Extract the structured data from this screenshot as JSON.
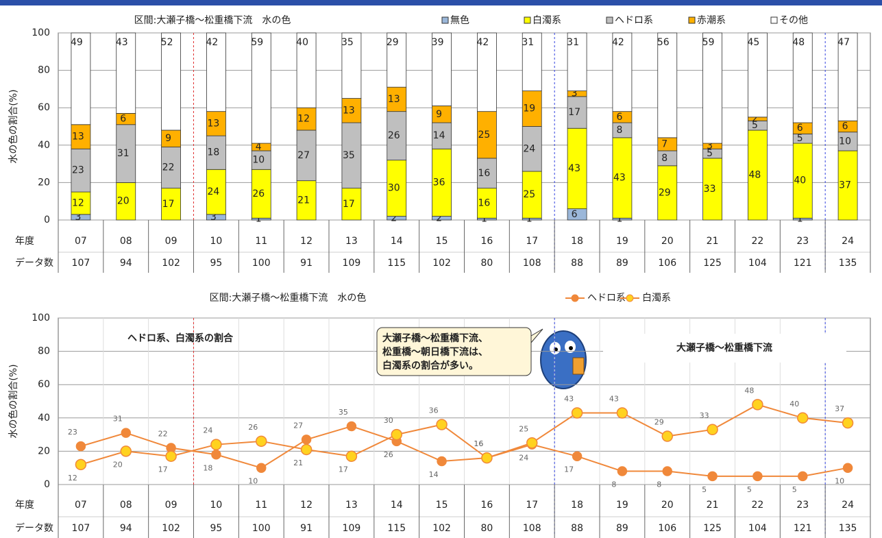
{
  "chart_data": [
    {
      "type": "bar",
      "stacked": true,
      "title": "区間:大瀬子橋～松重橋下流　水の色",
      "y_label": "水の色の割合(%)",
      "categories": [
        "07",
        "08",
        "09",
        "10",
        "11",
        "12",
        "13",
        "14",
        "15",
        "16",
        "17",
        "18",
        "19",
        "20",
        "21",
        "22",
        "23",
        "24"
      ],
      "series": [
        {
          "name": "無色",
          "color": "#9bb7d9",
          "values": [
            3,
            0,
            0,
            3,
            1,
            0,
            0,
            2,
            2,
            1,
            1,
            6,
            1,
            0,
            0,
            0,
            1,
            0
          ]
        },
        {
          "name": "白濁系",
          "color": "#ffff00",
          "values": [
            12,
            20,
            17,
            24,
            26,
            21,
            17,
            30,
            36,
            16,
            25,
            43,
            43,
            29,
            33,
            48,
            40,
            37
          ]
        },
        {
          "name": "ヘドロ系",
          "color": "#bfbfbf",
          "values": [
            23,
            31,
            22,
            18,
            10,
            27,
            35,
            26,
            14,
            16,
            24,
            17,
            8,
            8,
            5,
            5,
            5,
            10
          ]
        },
        {
          "name": "赤潮系",
          "color": "#ffb000",
          "values": [
            13,
            6,
            9,
            13,
            4,
            12,
            13,
            13,
            9,
            25,
            19,
            3,
            6,
            7,
            3,
            2,
            6,
            6
          ]
        },
        {
          "name": "その他",
          "color": "#ffffff",
          "values": [
            49,
            43,
            52,
            42,
            59,
            40,
            35,
            29,
            39,
            42,
            31,
            31,
            42,
            56,
            59,
            45,
            48,
            47
          ]
        }
      ],
      "ylim": [
        0,
        100
      ],
      "yticks": [
        0,
        20,
        40,
        60,
        80,
        100
      ],
      "grid": true,
      "row_labels": [
        "年度",
        "データ数"
      ],
      "data_counts": [
        107,
        94,
        102,
        95,
        100,
        91,
        109,
        115,
        102,
        80,
        108,
        88,
        89,
        106,
        125,
        104,
        121,
        135
      ]
    },
    {
      "type": "line",
      "title": "区間:大瀬子橋～松重橋下流　水の色",
      "y_label": "水の色の割合(%)",
      "categories": [
        "07",
        "08",
        "09",
        "10",
        "11",
        "12",
        "13",
        "14",
        "15",
        "16",
        "17",
        "18",
        "19",
        "20",
        "21",
        "22",
        "23",
        "24"
      ],
      "series": [
        {
          "name": "ヘドロ系",
          "color": "#f0883a",
          "values": [
            23,
            31,
            22,
            18,
            10,
            27,
            35,
            26,
            14,
            16,
            24,
            17,
            8,
            8,
            5,
            5,
            5,
            10
          ]
        },
        {
          "name": "白濁系",
          "color": "#ffd21f",
          "values": [
            12,
            20,
            17,
            24,
            26,
            21,
            17,
            30,
            36,
            16,
            25,
            43,
            43,
            29,
            33,
            48,
            40,
            37
          ]
        }
      ],
      "ylim": [
        0,
        100
      ],
      "yticks": [
        0,
        20,
        40,
        60,
        80,
        100
      ],
      "grid": true,
      "row_labels": [
        "年度",
        "データ数"
      ],
      "data_counts": [
        107,
        94,
        102,
        95,
        100,
        91,
        109,
        115,
        102,
        80,
        108,
        88,
        89,
        106,
        125,
        104,
        121,
        135
      ],
      "annotations": {
        "heading": "ヘドロ系、白濁系の割合",
        "note": [
          "大瀬子橋～松重橋下流、",
          "松重橋～朝日橋下流は、",
          "白濁系の割合が多い。"
        ],
        "section": "大瀬子橋～松重橋下流"
      }
    }
  ]
}
